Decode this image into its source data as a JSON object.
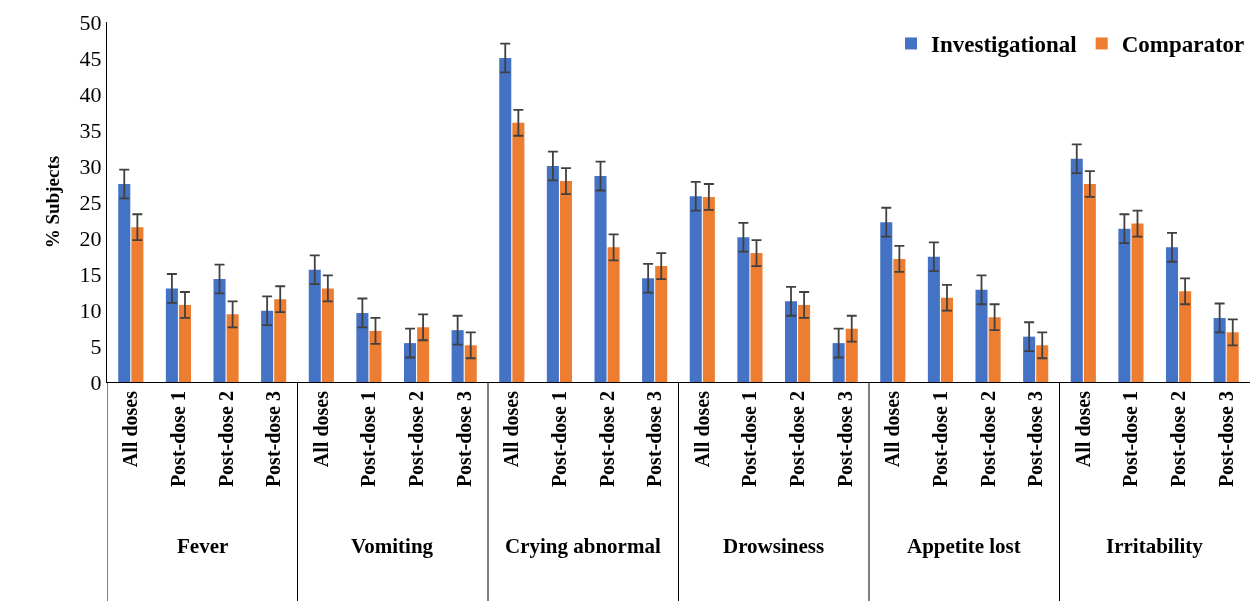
{
  "chart_data": {
    "type": "bar",
    "ylabel": "% Subjects",
    "categories": [
      "All doses",
      "Post-dose 1",
      "Post-dose 2",
      "Post-dose 3",
      "All doses",
      "Post-dose 1",
      "Post-dose 2",
      "Post-dose 3",
      "All doses",
      "Post-dose 1",
      "Post-dose 2",
      "Post-dose 3",
      "All doses",
      "Post-dose 1",
      "Post-dose 2",
      "Post-dose 3",
      "All doses",
      "Post-dose 1",
      "Post-dose 2",
      "Post-dose 3",
      "All doses",
      "Post-dose 1",
      "Post-dose 2",
      "Post-dose 3"
    ],
    "series": [
      {
        "name": "Investigational",
        "color": "#4472c4",
        "values": [
          27.5,
          13,
          14.3,
          9.9,
          15.6,
          9.6,
          5.4,
          7.2,
          45,
          30,
          28.6,
          14.4,
          25.8,
          20.1,
          11.2,
          5.4,
          22.2,
          17.4,
          12.8,
          6.3,
          31,
          21.3,
          18.7,
          8.9
        ],
        "errors": [
          2,
          2,
          2,
          2,
          2,
          2,
          2,
          2,
          2,
          2,
          2,
          2,
          2,
          2,
          2,
          2,
          2,
          2,
          2,
          2,
          2,
          2,
          2,
          2
        ]
      },
      {
        "name": "Comparator",
        "color": "#ed7d31",
        "values": [
          21.5,
          10.7,
          9.4,
          11.5,
          13,
          7.1,
          7.6,
          5.1,
          36,
          27.9,
          18.7,
          16.1,
          25.7,
          17.9,
          10.7,
          7.4,
          17.1,
          11.7,
          9,
          5.1,
          27.5,
          22,
          12.6,
          6.9
        ],
        "errors": [
          1.8,
          1.8,
          1.8,
          1.8,
          1.8,
          1.8,
          1.8,
          1.8,
          1.8,
          1.8,
          1.8,
          1.8,
          1.8,
          1.8,
          1.8,
          1.8,
          1.8,
          1.8,
          1.8,
          1.8,
          1.8,
          1.8,
          1.8,
          1.8
        ]
      }
    ],
    "annotations": [
      "Fever",
      "Vomiting",
      "Crying abnormal",
      "Drowsiness",
      "Appetite lost",
      "Irritability"
    ],
    "ylim": [
      0,
      50
    ],
    "yticks": [
      0,
      5,
      10,
      15,
      20,
      25,
      30,
      35,
      40,
      45,
      50
    ],
    "grid": false,
    "legend": "top right"
  }
}
